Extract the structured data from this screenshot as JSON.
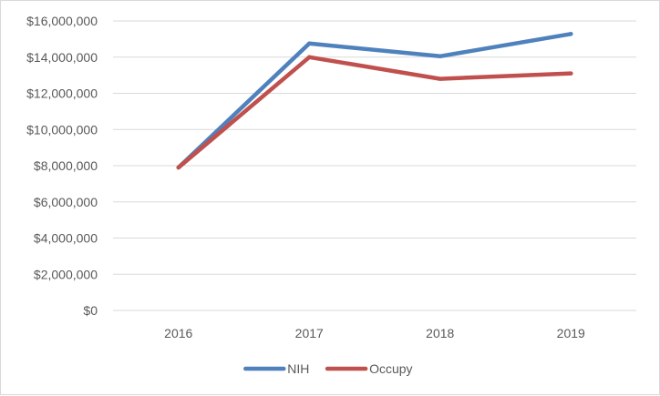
{
  "chart_data": {
    "type": "line",
    "title": "",
    "xlabel": "",
    "ylabel": "",
    "categories": [
      "2016",
      "2017",
      "2018",
      "2019"
    ],
    "ylim": [
      0,
      16000000
    ],
    "y_tick_values": [
      0,
      2000000,
      4000000,
      6000000,
      8000000,
      10000000,
      12000000,
      14000000,
      16000000
    ],
    "y_tick_labels": [
      "$0",
      "$2,000,000",
      "$4,000,000",
      "$6,000,000",
      "$8,000,000",
      "$10,000,000",
      "$12,000,000",
      "$14,000,000",
      "$16,000,000"
    ],
    "grid": true,
    "legend_position": "bottom",
    "series": [
      {
        "name": "NIH",
        "color": "#4f81bd",
        "values": [
          7900000,
          14750000,
          14050000,
          15280000
        ]
      },
      {
        "name": "Occupy",
        "color": "#c0504d",
        "values": [
          7900000,
          14000000,
          12800000,
          13100000
        ]
      }
    ]
  }
}
